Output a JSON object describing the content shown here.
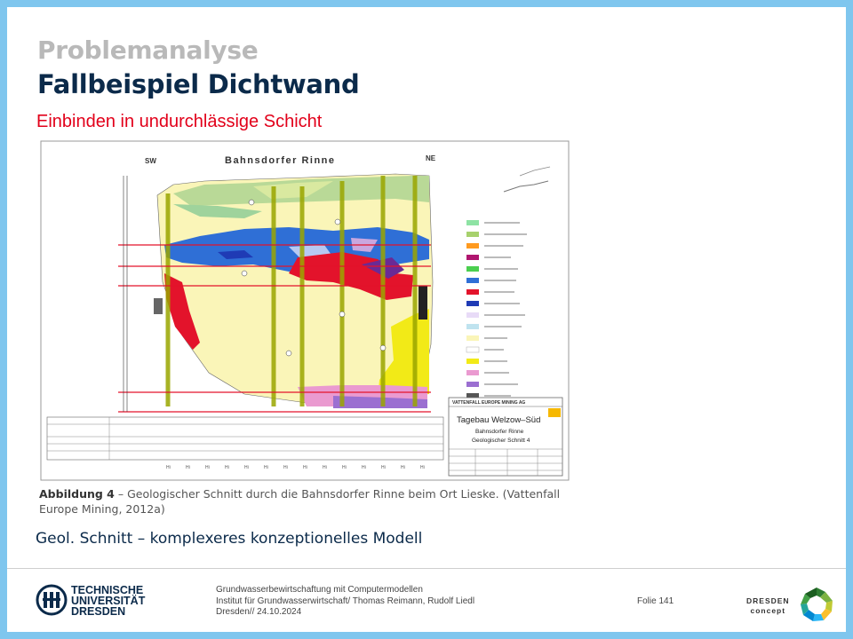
{
  "slide": {
    "supertitle": "Problemanalyse",
    "title": "Fallbeispiel Dichtwand",
    "subtitle": "Einbinden in undurchlässige Schicht",
    "note": "Geol. Schnitt – komplexeres konzeptionelles Modell"
  },
  "figure": {
    "heading": "Bahnsdorfer Rinne",
    "left_label": "SW",
    "right_label": "NE",
    "company": "VATTENFALL EUROPE MINING AG",
    "project": "Tagebau Welzow–Süd",
    "section_name": "Bahnsdorfer Rinne",
    "section_no": "Geologischer Schnitt 4",
    "caption_label": "Abbildung 4",
    "caption_text": " – Geologischer Schnitt durch die Bahnsdorfer Rinne beim Ort Lieske. (Vattenfall Europe Mining, 2012a)"
  },
  "colors": {
    "title": "#0b2a4a",
    "supertitle": "#b9b9b9",
    "subtitle": "#e2001a",
    "frame": "#7fc6ee"
  },
  "footer": {
    "university_line1": "TECHNISCHE",
    "university_line2": "UNIVERSITÄT",
    "university_line3": "DRESDEN",
    "line1": "Grundwasserbewirtschaftung mit Computermodellen",
    "line2": "Institut für Grundwasserwirtschaft/ Thomas Reimann, Rudolf Liedl",
    "line3": "Dresden// 24.10.2024",
    "slide_number": "Folie 141",
    "brand_line1": "DRESDEN",
    "brand_line2": "concept"
  }
}
